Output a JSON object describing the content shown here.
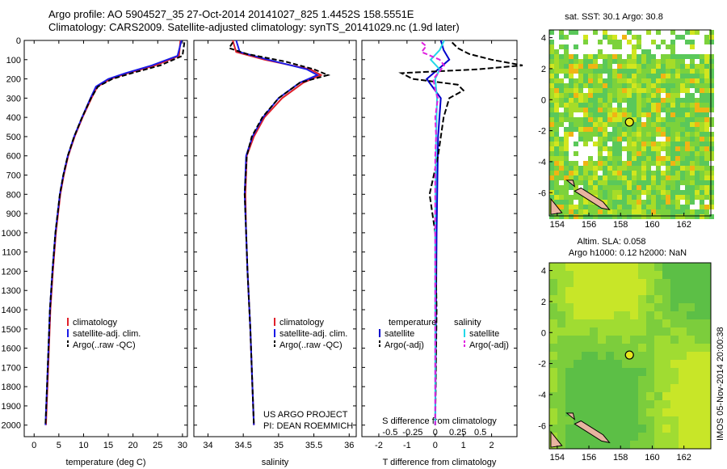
{
  "header": {
    "line1": "Argo profile: AO 5904527_35 27-Oct-2014 20141027_825 1.4452S 158.5551E",
    "line2": "Climatology: CARS2009. Satellite-adjusted climatology: synTS_20141029.nc (1.9d later)"
  },
  "colors": {
    "climatology": "#e0202a",
    "satellite": "#1a1ae6",
    "argo": "#000000",
    "sat_diff_T": "#0000cc",
    "sat_diff_S": "#22d8e8",
    "argo_diff_S": "#e020e0",
    "land": "#e8b4a0"
  },
  "footer": {
    "project": "US ARGO PROJECT",
    "pi": "PI: DEAN ROEMMICH",
    "imos": "IMOS 05-Nov-2014 20:00:38"
  },
  "chart_data": [
    {
      "id": "temperature",
      "type": "line",
      "xlabel": "temperature (deg C)",
      "ylabel": "",
      "xlim": [
        -2,
        31
      ],
      "ylim": [
        2060,
        0
      ],
      "xticks": [
        0,
        5,
        10,
        15,
        20,
        25,
        30
      ],
      "yticks": [
        0,
        100,
        200,
        300,
        400,
        500,
        600,
        700,
        800,
        900,
        1000,
        1100,
        1200,
        1300,
        1400,
        1500,
        1600,
        1700,
        1800,
        1900,
        2000
      ],
      "legend": [
        "climatology",
        "satellite-adj. clim.",
        "Argo(..raw -QC)"
      ],
      "series": [
        {
          "name": "climatology",
          "depth": [
            0,
            80,
            130,
            170,
            200,
            240,
            300,
            400,
            500,
            600,
            700,
            800,
            1000,
            1200,
            1400,
            1600,
            1800,
            2000
          ],
          "values": [
            29.6,
            29.3,
            24.5,
            19.0,
            15.5,
            12.8,
            11.6,
            9.8,
            8.2,
            6.9,
            6.0,
            5.3,
            4.4,
            3.8,
            3.3,
            3.0,
            2.7,
            2.4
          ]
        },
        {
          "name": "satellite-adj. clim.",
          "depth": [
            0,
            80,
            130,
            170,
            200,
            240,
            300,
            400,
            500,
            600,
            700,
            800,
            1000,
            1200,
            1400,
            1600,
            1800,
            2000
          ],
          "values": [
            29.8,
            29.0,
            23.8,
            18.5,
            15.0,
            12.5,
            11.4,
            9.7,
            8.1,
            6.8,
            5.9,
            5.2,
            4.3,
            3.7,
            3.2,
            2.9,
            2.6,
            2.3
          ]
        },
        {
          "name": "Argo(..raw -QC)",
          "depth": [
            10,
            80,
            130,
            170,
            200,
            240,
            300,
            400,
            500,
            600,
            700,
            800,
            1000,
            1200,
            1400,
            1600,
            1800,
            2000
          ],
          "values": [
            30.4,
            30.0,
            25.5,
            19.8,
            15.8,
            12.9,
            11.5,
            9.7,
            8.1,
            6.8,
            5.9,
            5.2,
            4.3,
            3.7,
            3.2,
            2.9,
            2.6,
            2.3
          ]
        }
      ]
    },
    {
      "id": "salinity",
      "type": "line",
      "xlabel": "salinity",
      "ylabel": "",
      "xlim": [
        33.8,
        36.1
      ],
      "ylim": [
        2060,
        0
      ],
      "xticks": [
        34,
        34.5,
        35,
        35.5,
        36
      ],
      "legend": [
        "climatology",
        "satellite-adj. clim.",
        "Argo(..raw -QC)"
      ],
      "series": [
        {
          "name": "climatology",
          "depth": [
            0,
            60,
            100,
            150,
            180,
            220,
            300,
            400,
            500,
            600,
            800,
            1000,
            1200,
            1500,
            1800,
            2000
          ],
          "values": [
            34.35,
            34.4,
            34.8,
            35.45,
            35.6,
            35.35,
            35.05,
            34.8,
            34.65,
            34.55,
            34.53,
            34.54,
            34.56,
            34.6,
            34.63,
            34.65
          ]
        },
        {
          "name": "satellite-adj. clim.",
          "depth": [
            0,
            60,
            100,
            150,
            180,
            220,
            300,
            400,
            500,
            600,
            800,
            1000,
            1200,
            1500,
            1800,
            2000
          ],
          "values": [
            34.4,
            34.45,
            34.85,
            35.4,
            35.55,
            35.3,
            35.0,
            34.78,
            34.63,
            34.54,
            34.52,
            34.54,
            34.56,
            34.6,
            34.63,
            34.65
          ]
        },
        {
          "name": "Argo(..raw -QC)",
          "depth": [
            10,
            40,
            70,
            110,
            150,
            180,
            220,
            300,
            400,
            500,
            600,
            800,
            1000,
            1200,
            1500,
            1800,
            2000
          ],
          "values": [
            34.35,
            34.3,
            34.55,
            35.1,
            35.5,
            35.7,
            35.3,
            35.0,
            34.77,
            34.62,
            34.55,
            34.52,
            34.54,
            34.56,
            34.6,
            34.63,
            34.65
          ]
        }
      ]
    },
    {
      "id": "difference",
      "type": "line",
      "xlabel": "T difference from climatology",
      "ylabel": "",
      "xlim": [
        -2.6,
        2.9
      ],
      "ylim": [
        2060,
        0
      ],
      "xticks": [
        -2,
        -1,
        0,
        1,
        2
      ],
      "top_xlabel": "S difference from climatology",
      "top_xticks": [
        -0.5,
        -0.25,
        0,
        0.25,
        0.5
      ],
      "legend_titles": [
        "temperature",
        "salinity"
      ],
      "legend": [
        "satellite",
        "Argo(-adj)",
        "satellite",
        "Argo(-adj)"
      ],
      "series": [
        {
          "name": "satellite",
          "quantity": "temperature",
          "depth": [
            0,
            50,
            100,
            150,
            200,
            300,
            500,
            1000,
            2000
          ],
          "values": [
            0.2,
            0.3,
            0.5,
            0.1,
            -0.3,
            0.2,
            0.1,
            0.05,
            0.0
          ]
        },
        {
          "name": "Argo(-adj)",
          "quantity": "temperature",
          "depth": [
            10,
            40,
            70,
            100,
            130,
            150,
            170,
            200,
            230,
            260,
            300,
            400,
            600,
            800,
            1000,
            1400,
            2000
          ],
          "values": [
            0.6,
            0.8,
            1.2,
            2.0,
            3.1,
            1.5,
            -1.2,
            -0.8,
            0.8,
            1.0,
            0.5,
            0.3,
            0.1,
            -0.2,
            0.0,
            0.05,
            0.0
          ]
        },
        {
          "name": "satellite",
          "quantity": "salinity",
          "depth": [
            0,
            50,
            100,
            150,
            200,
            300,
            500,
            1000,
            2000
          ],
          "values": [
            0.1,
            0.05,
            -0.05,
            0.05,
            0.0,
            0.02,
            0.01,
            0.0,
            0.0
          ]
        },
        {
          "name": "Argo(-adj)",
          "quantity": "salinity",
          "depth": [
            10,
            30,
            60,
            100,
            130,
            160,
            200,
            260,
            300,
            400,
            500,
            600,
            800,
            1000,
            1500,
            2000
          ],
          "values": [
            -0.15,
            -0.1,
            -0.15,
            0.05,
            0.1,
            0.05,
            -0.02,
            0.0,
            0.03,
            0.0,
            0.01,
            0.0,
            0.0,
            0.0,
            0.0,
            0.0
          ]
        }
      ]
    },
    {
      "id": "sst_map",
      "type": "heatmap",
      "title": "sat. SST: 30.1 Argo: 30.8",
      "xlim": [
        153.5,
        163.7
      ],
      "ylim": [
        -7.5,
        4.5
      ],
      "xticks": [
        154,
        156,
        158,
        160,
        162
      ],
      "yticks": [
        -6,
        -4,
        -2,
        0,
        2,
        4
      ],
      "marker": {
        "lon": 158.56,
        "lat": -1.45
      }
    },
    {
      "id": "sla_map",
      "type": "heatmap",
      "title_line1": "Altim. SLA: 0.058",
      "title_line2": "Argo h1000: 0.12 h2000: NaN",
      "xlim": [
        153.5,
        163.7
      ],
      "ylim": [
        -7.5,
        4.5
      ],
      "xticks": [
        154,
        156,
        158,
        160,
        162
      ],
      "yticks": [
        -6,
        -4,
        -2,
        0,
        2,
        4
      ],
      "marker": {
        "lon": 158.56,
        "lat": -1.45
      }
    }
  ]
}
